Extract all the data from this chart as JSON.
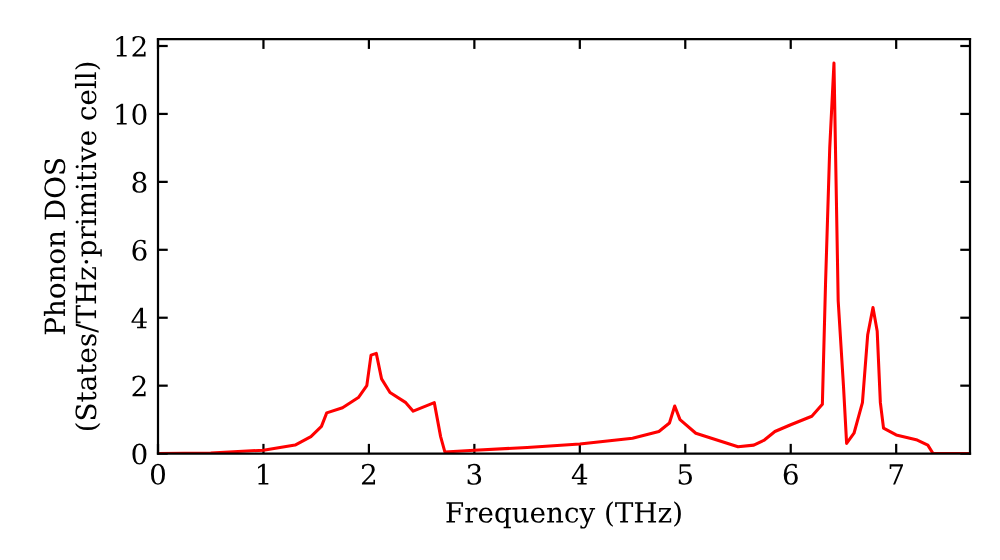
{
  "chart_data": {
    "type": "line",
    "xlabel": "Frequency (THz)",
    "ylabel": "Phonon DOS\n(States/THz·primitive cell)",
    "x": [
      0,
      0.5,
      1,
      1.3,
      1.45,
      1.55,
      1.6,
      1.75,
      1.9,
      1.98,
      2.02,
      2.07,
      2.12,
      2.2,
      2.35,
      2.42,
      2.62,
      2.68,
      2.72,
      3,
      3.5,
      4,
      4.5,
      4.75,
      4.85,
      4.9,
      4.95,
      5.1,
      5.3,
      5.5,
      5.65,
      5.75,
      5.85,
      6,
      6.2,
      6.3,
      6.33,
      6.37,
      6.41,
      6.45,
      6.5,
      6.53,
      6.6,
      6.68,
      6.73,
      6.78,
      6.82,
      6.85,
      6.88,
      7.0,
      7.2,
      7.3,
      7.35,
      7.7
    ],
    "series": [
      {
        "color": "#ff0000",
        "values": [
          0,
          0.02,
          0.1,
          0.25,
          0.5,
          0.8,
          1.2,
          1.35,
          1.65,
          2.0,
          2.9,
          2.95,
          2.2,
          1.8,
          1.5,
          1.25,
          1.5,
          0.5,
          0.05,
          0.1,
          0.18,
          0.28,
          0.45,
          0.65,
          0.9,
          1.4,
          1.0,
          0.6,
          0.4,
          0.2,
          0.25,
          0.4,
          0.65,
          0.85,
          1.1,
          1.45,
          5,
          9.0,
          11.5,
          4.5,
          2,
          0.3,
          0.6,
          1.5,
          3.5,
          4.3,
          3.6,
          1.5,
          0.75,
          0.55,
          0.4,
          0.25,
          0,
          0
        ]
      }
    ],
    "xlim": [
      0,
      7.7
    ],
    "ylim": [
      0,
      12.2
    ],
    "xticks": [
      0,
      1,
      2,
      3,
      4,
      5,
      6,
      7
    ],
    "yticks": [
      0,
      2,
      4,
      6,
      8,
      10,
      12
    ],
    "grid": false,
    "legend": false,
    "line_style": "solid",
    "marker": "none"
  }
}
